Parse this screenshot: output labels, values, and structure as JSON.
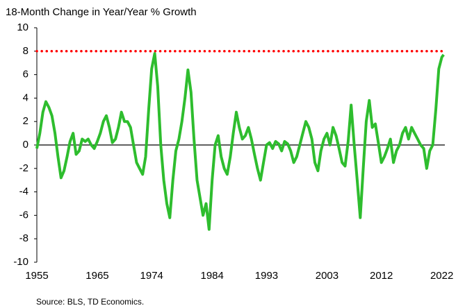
{
  "chart_data": {
    "type": "line",
    "title": "18-Month Change in Year/Year % Growth",
    "source": "Source: BLS, TD Economics.",
    "color": "#2ebd2e",
    "reference_line": {
      "value": 8,
      "color": "#ff0000"
    },
    "xlim": [
      1955,
      2022.5
    ],
    "xticks": [
      1955,
      1965,
      1974,
      1984,
      1993,
      2003,
      2012,
      2022
    ],
    "ylim": [
      -10,
      10
    ],
    "yticks": [
      -10,
      -8,
      -6,
      -4,
      -2,
      0,
      2,
      4,
      6,
      8,
      10
    ],
    "x": [
      1955,
      1955.5,
      1956,
      1956.5,
      1957,
      1957.5,
      1958,
      1958.5,
      1959,
      1959.5,
      1960,
      1960.5,
      1961,
      1961.5,
      1962,
      1962.5,
      1963,
      1963.5,
      1964,
      1964.5,
      1965,
      1965.5,
      1966,
      1966.5,
      1967,
      1967.5,
      1968,
      1968.5,
      1969,
      1969.5,
      1970,
      1970.5,
      1971,
      1971.5,
      1972,
      1972.5,
      1973,
      1973.5,
      1974,
      1974.5,
      1975,
      1975.5,
      1976,
      1976.5,
      1977,
      1977.5,
      1978,
      1978.5,
      1979,
      1979.5,
      1980,
      1980.5,
      1981,
      1981.5,
      1982,
      1982.5,
      1983,
      1983.5,
      1984,
      1984.5,
      1985,
      1985.5,
      1986,
      1986.5,
      1987,
      1987.5,
      1988,
      1988.5,
      1989,
      1989.5,
      1990,
      1990.5,
      1991,
      1991.5,
      1992,
      1992.5,
      1993,
      1993.5,
      1994,
      1994.5,
      1995,
      1995.5,
      1996,
      1996.5,
      1997,
      1997.5,
      1998,
      1998.5,
      1999,
      1999.5,
      2000,
      2000.5,
      2001,
      2001.5,
      2002,
      2002.5,
      2003,
      2003.5,
      2004,
      2004.5,
      2005,
      2005.5,
      2006,
      2006.5,
      2007,
      2007.5,
      2008,
      2008.5,
      2009,
      2009.5,
      2010,
      2010.5,
      2011,
      2011.5,
      2012,
      2012.5,
      2013,
      2013.5,
      2014,
      2014.5,
      2015,
      2015.5,
      2016,
      2016.5,
      2017,
      2017.5,
      2018,
      2018.5,
      2019,
      2019.5,
      2020,
      2020.5,
      2021,
      2021.5,
      2022,
      2022.3
    ],
    "values": [
      -0.3,
      1,
      2.8,
      3.7,
      3.2,
      2.5,
      1,
      -1,
      -2.8,
      -2.2,
      -1,
      0.3,
      1,
      -0.8,
      -0.5,
      0.5,
      0.3,
      0.5,
      0,
      -0.3,
      0.3,
      1,
      2,
      2.5,
      1.5,
      0.2,
      0.5,
      1.5,
      2.8,
      2,
      2,
      1.5,
      0,
      -1.5,
      -2,
      -2.5,
      -1,
      3,
      6.5,
      7.8,
      5,
      0,
      -3,
      -5,
      -6.2,
      -3,
      -0.5,
      0.5,
      2,
      4,
      6.4,
      4.5,
      0.5,
      -3,
      -4.5,
      -6,
      -5,
      -7.2,
      -3,
      0,
      0.8,
      -1,
      -2,
      -2.5,
      -1,
      1,
      2.8,
      1.5,
      0.5,
      0.8,
      1.5,
      0.5,
      -0.8,
      -2,
      -3,
      -1.5,
      0,
      0.2,
      -0.3,
      0.3,
      0.1,
      -0.5,
      0.3,
      0.1,
      -0.5,
      -1.5,
      -1,
      0,
      1,
      2,
      1.5,
      0.5,
      -1.5,
      -2.2,
      -0.5,
      0.5,
      1,
      0,
      1.5,
      0.8,
      -0.3,
      -1.5,
      -1.8,
      0.3,
      3.4,
      0,
      -3,
      -6.2,
      -2,
      2,
      3.8,
      1.5,
      1.8,
      0.2,
      -1.5,
      -1,
      -0.3,
      0.5,
      -1.5,
      -0.5,
      0,
      1,
      1.5,
      0.5,
      1.5,
      1,
      0.5,
      0,
      -0.3,
      -2,
      -0.5,
      0,
      3,
      6.5,
      7.5,
      7.7
    ]
  }
}
